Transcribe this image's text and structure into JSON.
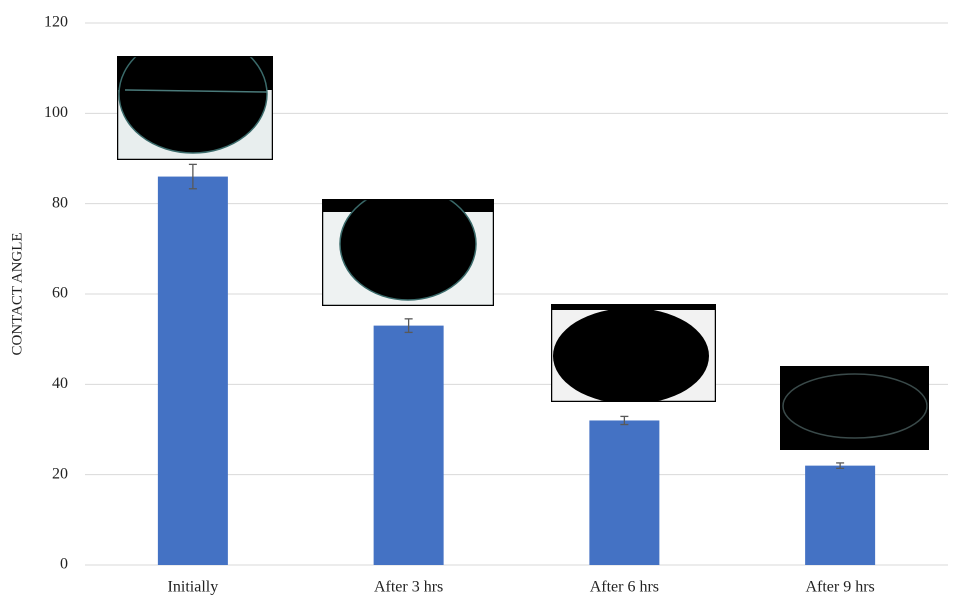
{
  "chart_data": {
    "type": "bar",
    "y_label": "CONTACT ANGLE",
    "categories": [
      "Initially",
      "After 3 hrs",
      "After 6 hrs",
      "After 9 hrs"
    ],
    "values": [
      86,
      53,
      32,
      22
    ],
    "errors": [
      2.7,
      1.5,
      0.9,
      0.6
    ],
    "color": "#4472c4",
    "ylim": [
      0,
      120
    ],
    "yticks": [
      0,
      20,
      40,
      60,
      80,
      100,
      120
    ],
    "grid": true
  }
}
